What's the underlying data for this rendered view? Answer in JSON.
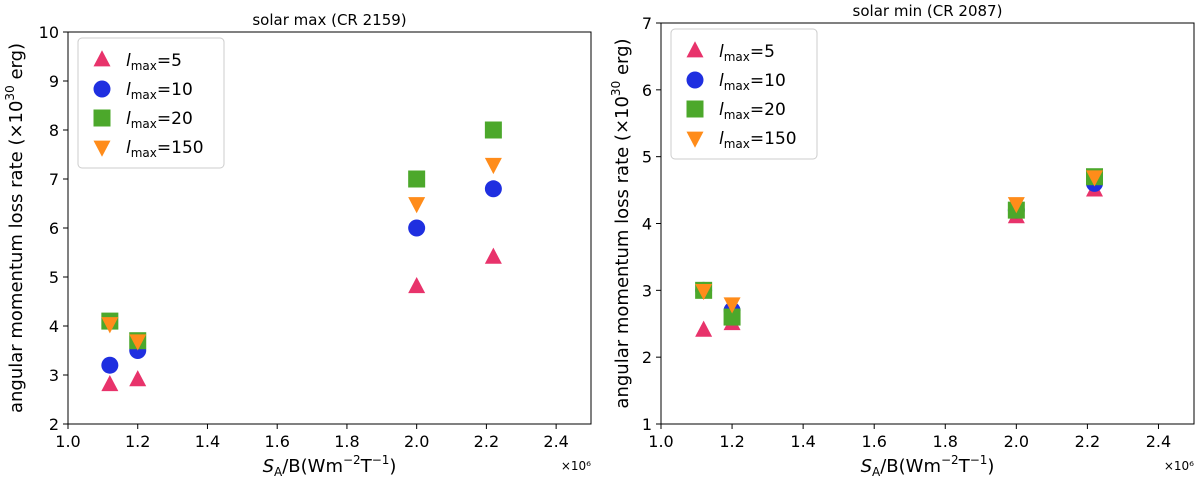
{
  "chart_data": [
    {
      "type": "scatter",
      "title": "solar max (CR 2159)",
      "xlabel": {
        "base": "S",
        "sub": "A",
        "rest": "/B(Wm",
        "sup1": "−2",
        "mid": "T",
        "sup2": "−1",
        "end": ")"
      },
      "ylabel": {
        "pre": "angular momentum loss rate (×10",
        "sup": "30",
        "post": " erg)"
      },
      "x_multiplier": "×10⁶",
      "xlim": [
        1.0,
        2.5
      ],
      "ylim": [
        2,
        10
      ],
      "xticks": [
        "1.0",
        "1.2",
        "1.4",
        "1.6",
        "1.8",
        "2.0",
        "2.2",
        "2.4"
      ],
      "yticks": [
        "2",
        "3",
        "4",
        "5",
        "6",
        "7",
        "8",
        "9",
        "10"
      ],
      "legend_position": "upper-left",
      "series": [
        {
          "name": "lmax=5",
          "label_base": "l",
          "label_sub": "max",
          "label_rest": "=5",
          "marker": "triangle-up",
          "color": "#e8336b",
          "points": [
            [
              1.12,
              2.8
            ],
            [
              1.2,
              2.9
            ],
            [
              2.0,
              4.8
            ],
            [
              2.22,
              5.4
            ]
          ]
        },
        {
          "name": "lmax=10",
          "label_base": "l",
          "label_sub": "max",
          "label_rest": "=10",
          "marker": "circle",
          "color": "#1f2fe0",
          "points": [
            [
              1.12,
              3.2
            ],
            [
              1.2,
              3.5
            ],
            [
              2.0,
              6.0
            ],
            [
              2.22,
              6.8
            ]
          ]
        },
        {
          "name": "lmax=20",
          "label_base": "l",
          "label_sub": "max",
          "label_rest": "=20",
          "marker": "square",
          "color": "#4ca82b",
          "points": [
            [
              1.12,
              4.1
            ],
            [
              1.2,
              3.7
            ],
            [
              2.0,
              7.0
            ],
            [
              2.22,
              8.0
            ]
          ]
        },
        {
          "name": "lmax=150",
          "label_base": "l",
          "label_sub": "max",
          "label_rest": "=150",
          "marker": "triangle-down",
          "color": "#ff8c1a",
          "points": [
            [
              1.12,
              4.05
            ],
            [
              1.2,
              3.7
            ],
            [
              2.0,
              6.5
            ],
            [
              2.22,
              7.3
            ]
          ]
        }
      ]
    },
    {
      "type": "scatter",
      "title": "solar min (CR 2087)",
      "xlabel": {
        "base": "S",
        "sub": "A",
        "rest": "/B(Wm",
        "sup1": "−2",
        "mid": "T",
        "sup2": "−1",
        "end": ")"
      },
      "ylabel": {
        "pre": "angular momentum loss rate (×10",
        "sup": "30",
        "post": " erg)"
      },
      "x_multiplier": "×10⁶",
      "xlim": [
        1.0,
        2.5
      ],
      "ylim": [
        1,
        7
      ],
      "xticks": [
        "1.0",
        "1.2",
        "1.4",
        "1.6",
        "1.8",
        "2.0",
        "2.2",
        "2.4"
      ],
      "yticks": [
        "1",
        "2",
        "3",
        "4",
        "5",
        "6",
        "7"
      ],
      "legend_position": "upper-left",
      "series": [
        {
          "name": "lmax=5",
          "label_base": "l",
          "label_sub": "max",
          "label_rest": "=5",
          "marker": "triangle-up",
          "color": "#e8336b",
          "points": [
            [
              1.12,
              2.4
            ],
            [
              1.2,
              2.5
            ],
            [
              2.0,
              4.1
            ],
            [
              2.22,
              4.5
            ]
          ]
        },
        {
          "name": "lmax=10",
          "label_base": "l",
          "label_sub": "max",
          "label_rest": "=10",
          "marker": "circle",
          "color": "#1f2fe0",
          "points": [
            [
              1.12,
              3.0
            ],
            [
              1.2,
              2.7
            ],
            [
              2.0,
              4.2
            ],
            [
              2.22,
              4.6
            ]
          ]
        },
        {
          "name": "lmax=20",
          "label_base": "l",
          "label_sub": "max",
          "label_rest": "=20",
          "marker": "square",
          "color": "#4ca82b",
          "points": [
            [
              1.12,
              3.0
            ],
            [
              1.2,
              2.6
            ],
            [
              2.0,
              4.2
            ],
            [
              2.22,
              4.7
            ]
          ]
        },
        {
          "name": "lmax=150",
          "label_base": "l",
          "label_sub": "max",
          "label_rest": "=150",
          "marker": "triangle-down",
          "color": "#ff8c1a",
          "points": [
            [
              1.12,
              3.0
            ],
            [
              1.2,
              2.8
            ],
            [
              2.0,
              4.3
            ],
            [
              2.22,
              4.7
            ]
          ]
        }
      ]
    }
  ]
}
